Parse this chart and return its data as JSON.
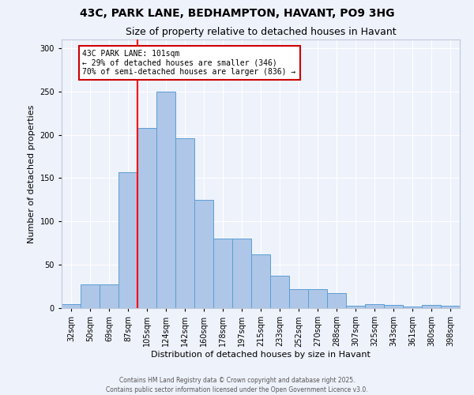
{
  "title1": "43C, PARK LANE, BEDHAMPTON, HAVANT, PO9 3HG",
  "title2": "Size of property relative to detached houses in Havant",
  "xlabel": "Distribution of detached houses by size in Havant",
  "ylabel": "Number of detached properties",
  "categories": [
    "32sqm",
    "50sqm",
    "69sqm",
    "87sqm",
    "105sqm",
    "124sqm",
    "142sqm",
    "160sqm",
    "178sqm",
    "197sqm",
    "215sqm",
    "233sqm",
    "252sqm",
    "270sqm",
    "288sqm",
    "307sqm",
    "325sqm",
    "343sqm",
    "361sqm",
    "380sqm",
    "398sqm"
  ],
  "values": [
    5,
    27,
    27,
    157,
    208,
    250,
    196,
    125,
    80,
    80,
    62,
    37,
    22,
    22,
    17,
    3,
    5,
    4,
    2,
    4,
    3
  ],
  "bar_color": "#aec6e8",
  "bar_edge_color": "#5a9fd4",
  "red_line_index": 4,
  "annotation_text": "43C PARK LANE: 101sqm\n← 29% of detached houses are smaller (346)\n70% of semi-detached houses are larger (836) →",
  "annotation_box_facecolor": "#ffffff",
  "annotation_box_edgecolor": "#cc0000",
  "ylim": [
    0,
    310
  ],
  "background_color": "#eef2fb",
  "grid_color": "#ffffff",
  "footer_text": "Contains HM Land Registry data © Crown copyright and database right 2025.\nContains public sector information licensed under the Open Government Licence v3.0."
}
